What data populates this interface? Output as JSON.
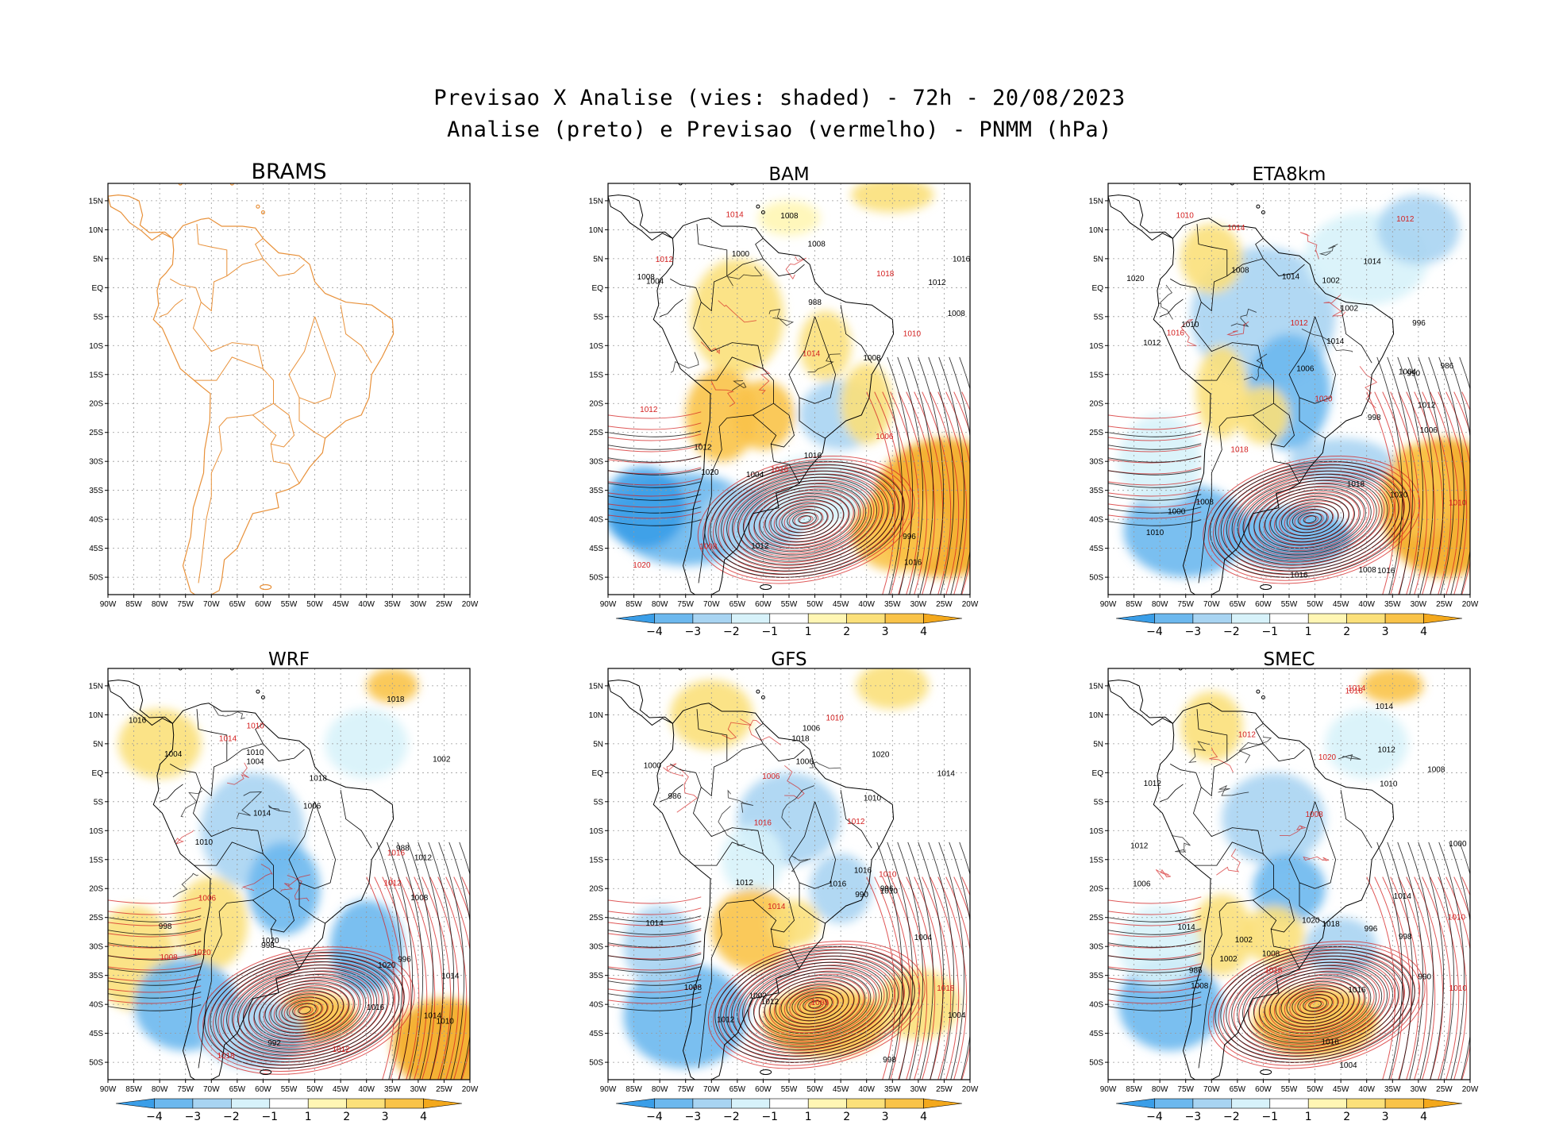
{
  "title_line1": "Previsao X Analise (vies: shaded) - 72h - 20/08/2023",
  "title_line2": "Analise (preto) e Previsao (vermelho) - PNMM (hPa)",
  "lat_labels": [
    "15N",
    "10N",
    "5N",
    "EQ",
    "5S",
    "10S",
    "15S",
    "20S",
    "25S",
    "30S",
    "35S",
    "40S",
    "45S",
    "50S"
  ],
  "lon_labels": [
    "90W",
    "85W",
    "80W",
    "75W",
    "70W",
    "65W",
    "60W",
    "55W",
    "50W",
    "45W",
    "40W",
    "35W",
    "30W",
    "25W",
    "20W"
  ],
  "colorbar": {
    "ticks": [
      "-4",
      "-3",
      "-2",
      "-1",
      "1",
      "2",
      "3",
      "4"
    ],
    "colors": [
      "#3a9ee8",
      "#6cb8ee",
      "#a8d4f2",
      "#d7f2fa",
      "#ffffff",
      "#fff6b4",
      "#fbe07a",
      "#f9c349",
      "#f3a81c"
    ]
  },
  "colors": {
    "coast": "#e8913a",
    "analysis": "#000000",
    "forecast": "#d42020",
    "grid": "#999999"
  },
  "panels": [
    {
      "id": "brams",
      "name": "BRAMS",
      "has_data": false,
      "has_colorbar": false,
      "black_labels": [],
      "red_labels": []
    },
    {
      "id": "bam",
      "name": "BAM",
      "has_data": true,
      "has_colorbar": true,
      "black_labels": [
        "1008",
        "1008",
        "1008",
        "1012",
        "1016",
        "1020",
        "1012",
        "1008",
        "1004",
        "1000",
        "996",
        "988",
        "1004",
        "1012",
        "1008",
        "1016",
        "1016"
      ],
      "red_labels": [
        "1010",
        "1012",
        "1012",
        "1014",
        "1016",
        "1018",
        "1006",
        "1008",
        "1020",
        "1014"
      ]
    },
    {
      "id": "eta",
      "name": "ETA8km",
      "has_data": true,
      "has_colorbar": true,
      "black_labels": [
        "1008",
        "1008",
        "1012",
        "1014",
        "1006",
        "1008",
        "1010",
        "1018",
        "1020",
        "1014",
        "1012",
        "1004",
        "1002",
        "996",
        "998",
        "1000",
        "986",
        "990",
        "1002",
        "1014",
        "1006",
        "1016",
        "1016",
        "1010",
        "1020"
      ],
      "red_labels": [
        "1010",
        "1012",
        "1012",
        "1010",
        "1016",
        "1018",
        "1020",
        "1014"
      ]
    },
    {
      "id": "wrf",
      "name": "WRF",
      "has_data": true,
      "has_colorbar": true,
      "black_labels": [
        "1010",
        "1012",
        "1014",
        "1016",
        "1018",
        "1020",
        "1014",
        "1010",
        "1006",
        "1004",
        "1002",
        "998",
        "996",
        "988",
        "992",
        "998",
        "1004",
        "1008",
        "1010",
        "1014",
        "1016",
        "1018",
        "1020"
      ],
      "red_labels": [
        "1010",
        "1012",
        "1014",
        "1008",
        "1006",
        "1016",
        "1018",
        "1020",
        "1012"
      ]
    },
    {
      "id": "gfs",
      "name": "GFS",
      "has_data": true,
      "has_colorbar": true,
      "black_labels": [
        "1008",
        "1006",
        "1010",
        "1012",
        "1016",
        "1018",
        "1020",
        "1014",
        "1012",
        "1006",
        "1004",
        "1002",
        "1000",
        "996",
        "986",
        "990",
        "998",
        "1004",
        "1010",
        "1012",
        "1014",
        "1016"
      ],
      "red_labels": [
        "1010",
        "1012",
        "1008",
        "1006",
        "1016",
        "1018",
        "1010",
        "1014"
      ]
    },
    {
      "id": "smec",
      "name": "SMEC",
      "has_data": true,
      "has_colorbar": true,
      "black_labels": [
        "1008",
        "1008",
        "1012",
        "1014",
        "1016",
        "1018",
        "1020",
        "1014",
        "1012",
        "1008",
        "1006",
        "1004",
        "1002",
        "996",
        "998",
        "1000",
        "986",
        "990",
        "1002",
        "1012",
        "1014",
        "1016",
        "1010"
      ],
      "red_labels": [
        "1010",
        "1012",
        "1008",
        "1014",
        "1016",
        "1018",
        "1020",
        "1010"
      ]
    }
  ]
}
